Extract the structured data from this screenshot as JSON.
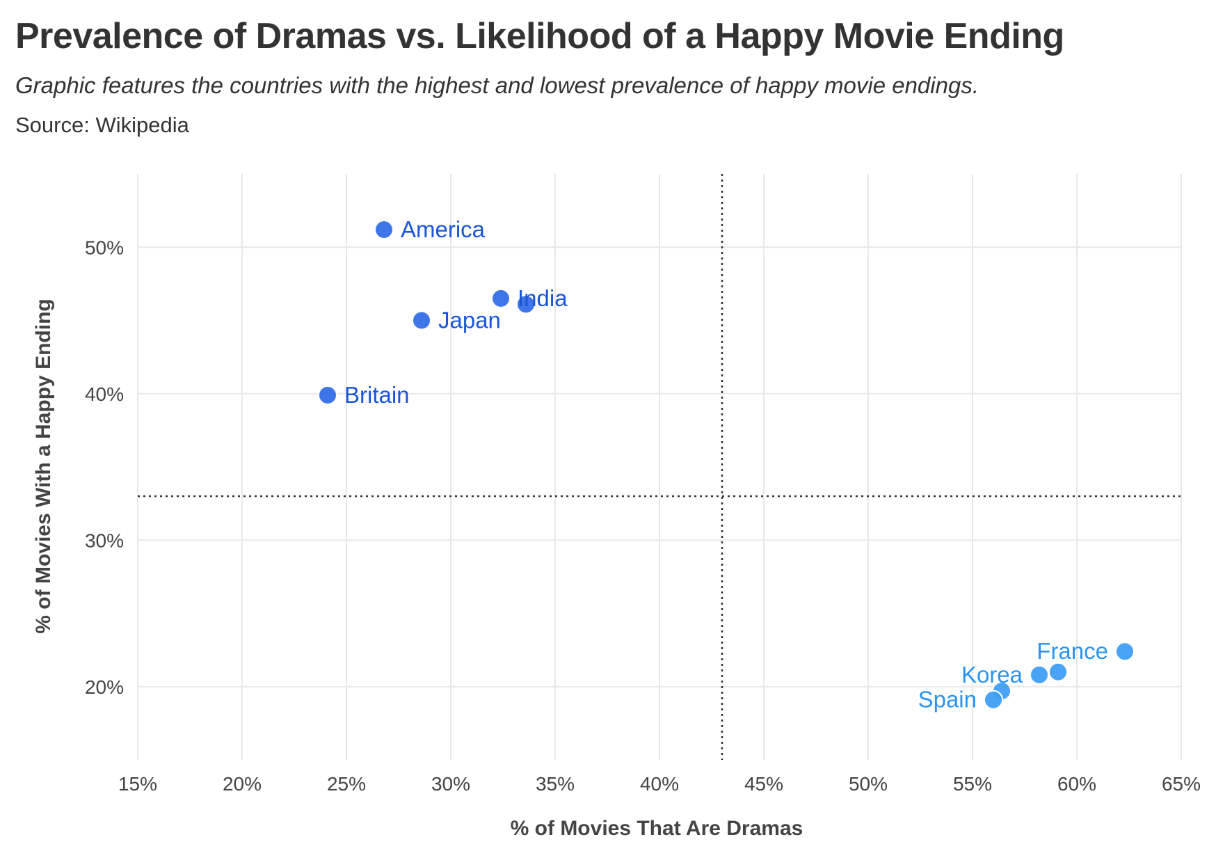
{
  "header": {
    "title": "Prevalence of Dramas vs. Likelihood of a Happy Movie Ending",
    "subtitle": "Graphic features the countries with the highest and lowest prevalence of happy movie endings.",
    "caption": "Source: Wikipedia"
  },
  "colors": {
    "highest": "#2f6ae6",
    "lowest": "#3b9cf5",
    "highest_label": "#1a56d6",
    "lowest_label": "#2b93f0",
    "grid": "#e8e8e8",
    "reference_line": "#333333"
  },
  "chart_data": {
    "type": "scatter",
    "xlabel": "% of Movies That Are Dramas",
    "ylabel": "% of Movies With a Happy Ending",
    "xlim": [
      15,
      65
    ],
    "ylim": [
      15,
      55
    ],
    "x_ticks": [
      15,
      20,
      25,
      30,
      35,
      40,
      45,
      50,
      55,
      60,
      65
    ],
    "x_tick_labels": [
      "15%",
      "20%",
      "25%",
      "30%",
      "35%",
      "40%",
      "45%",
      "50%",
      "55%",
      "60%",
      "65%"
    ],
    "y_ticks": [
      20,
      30,
      40,
      50
    ],
    "y_tick_labels": [
      "20%",
      "30%",
      "40%",
      "50%"
    ],
    "grid": true,
    "reference_lines": {
      "x": 43,
      "y": 33
    },
    "points": [
      {
        "label": "America",
        "x": 26.8,
        "y": 51.2,
        "group": "highest",
        "label_pos": "right"
      },
      {
        "label": "India",
        "x": 32.4,
        "y": 46.5,
        "group": "highest",
        "label_pos": "right"
      },
      {
        "label": "",
        "x": 33.6,
        "y": 46.1,
        "group": "highest",
        "label_pos": "none"
      },
      {
        "label": "Japan",
        "x": 28.6,
        "y": 45.0,
        "group": "highest",
        "label_pos": "right"
      },
      {
        "label": "Britain",
        "x": 24.1,
        "y": 39.9,
        "group": "highest",
        "label_pos": "right"
      },
      {
        "label": "France",
        "x": 62.3,
        "y": 22.4,
        "group": "lowest",
        "label_pos": "left"
      },
      {
        "label": "",
        "x": 59.1,
        "y": 21.0,
        "group": "lowest",
        "label_pos": "none"
      },
      {
        "label": "Korea",
        "x": 58.2,
        "y": 20.8,
        "group": "lowest",
        "label_pos": "left"
      },
      {
        "label": "",
        "x": 56.4,
        "y": 19.7,
        "group": "lowest",
        "label_pos": "none"
      },
      {
        "label": "Spain",
        "x": 56.0,
        "y": 19.1,
        "group": "lowest",
        "label_pos": "left"
      }
    ]
  }
}
